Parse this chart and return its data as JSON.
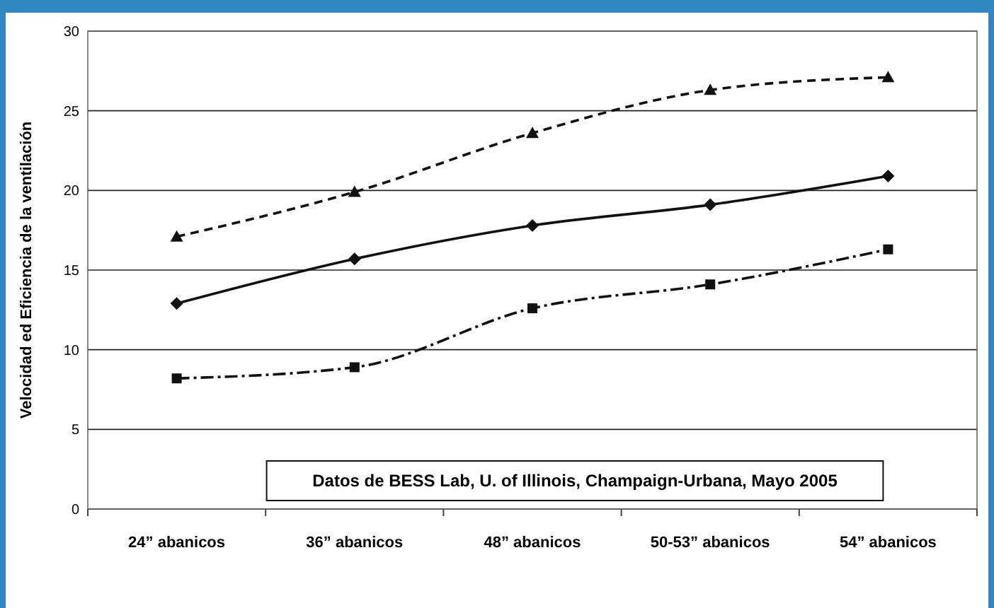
{
  "chart_data": {
    "type": "line",
    "ylabel": "Velocidad ed Eficiencia de la ventilación",
    "categories": [
      "24” abanicos",
      "36” abanicos",
      "48” abanicos",
      "50-53” abanicos",
      "54” abanicos"
    ],
    "series": [
      {
        "color": "#111111",
        "values": [
          17.1,
          19.9,
          23.6,
          26.3,
          27.1
        ],
        "marker": "triangle",
        "line_style": "dashed"
      },
      {
        "color": "#111111",
        "values": [
          12.9,
          15.7,
          17.8,
          19.1,
          20.9
        ],
        "marker": "diamond",
        "line_style": "solid"
      },
      {
        "color": "#111111",
        "values": [
          8.2,
          8.9,
          12.6,
          14.1,
          16.3
        ],
        "marker": "square",
        "line_style": "dotted"
      }
    ],
    "ylim": [
      0,
      30
    ],
    "yticks": [
      0,
      5,
      10,
      15,
      20,
      25,
      30
    ],
    "grid": "y",
    "annotations": [
      "Datos de BESS Lab, U. of Illinois, Champaign-Urbana, Mayo 2005"
    ]
  }
}
